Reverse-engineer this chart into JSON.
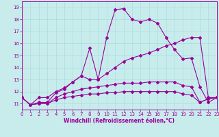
{
  "xlabel": "Windchill (Refroidissement éolien,°C)",
  "xlim": [
    0,
    23
  ],
  "ylim": [
    10.5,
    19.5
  ],
  "xticks": [
    0,
    1,
    2,
    3,
    4,
    5,
    6,
    7,
    8,
    9,
    10,
    11,
    12,
    13,
    14,
    15,
    16,
    17,
    18,
    19,
    20,
    21,
    22,
    23
  ],
  "yticks": [
    11,
    12,
    13,
    14,
    15,
    16,
    17,
    18,
    19
  ],
  "background_color": "#c8ecec",
  "grid_color": "#aadddd",
  "line_color": "#990099",
  "lines": [
    {
      "x": [
        0,
        1,
        2,
        3,
        4,
        5,
        6,
        7,
        8,
        9,
        10,
        11,
        12,
        13,
        14,
        15,
        16,
        17,
        18,
        19,
        20,
        21,
        22,
        23
      ],
      "y": [
        11.5,
        10.9,
        11.5,
        11.5,
        12.0,
        12.3,
        12.8,
        13.3,
        15.6,
        13.0,
        16.5,
        18.8,
        18.9,
        18.0,
        17.8,
        18.0,
        17.7,
        16.5,
        15.5,
        14.7,
        14.8,
        12.4,
        11.1,
        11.5
      ]
    },
    {
      "x": [
        0,
        1,
        2,
        3,
        4,
        5,
        6,
        7,
        8,
        9,
        10,
        11,
        12,
        13,
        14,
        15,
        16,
        17,
        18,
        19,
        20,
        21,
        22,
        23
      ],
      "y": [
        11.5,
        10.9,
        11.1,
        11.1,
        11.9,
        12.2,
        12.8,
        13.3,
        13.0,
        13.0,
        13.5,
        14.0,
        14.5,
        14.8,
        15.0,
        15.2,
        15.5,
        15.8,
        16.0,
        16.3,
        16.5,
        16.5,
        11.5,
        11.5
      ]
    },
    {
      "x": [
        0,
        1,
        2,
        3,
        4,
        5,
        6,
        7,
        8,
        9,
        10,
        11,
        12,
        13,
        14,
        15,
        16,
        17,
        18,
        19,
        20,
        21,
        22,
        23
      ],
      "y": [
        11.5,
        10.9,
        11.0,
        11.0,
        11.5,
        11.8,
        12.0,
        12.2,
        12.3,
        12.4,
        12.5,
        12.6,
        12.7,
        12.7,
        12.7,
        12.8,
        12.8,
        12.8,
        12.8,
        12.5,
        12.4,
        11.1,
        11.4,
        11.5
      ]
    },
    {
      "x": [
        0,
        1,
        2,
        3,
        4,
        5,
        6,
        7,
        8,
        9,
        10,
        11,
        12,
        13,
        14,
        15,
        16,
        17,
        18,
        19,
        20,
        21,
        22,
        23
      ],
      "y": [
        11.5,
        10.9,
        11.0,
        11.0,
        11.3,
        11.5,
        11.6,
        11.7,
        11.8,
        11.8,
        11.9,
        11.9,
        12.0,
        12.0,
        12.0,
        12.0,
        12.0,
        12.0,
        12.0,
        11.8,
        11.7,
        11.1,
        11.4,
        11.5
      ]
    }
  ]
}
